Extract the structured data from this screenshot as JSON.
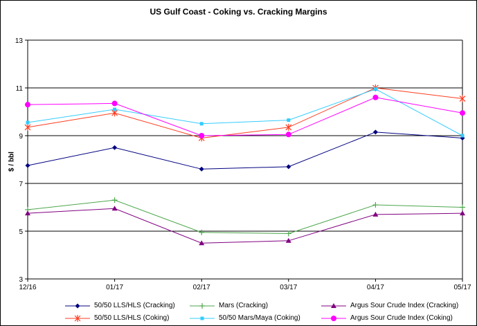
{
  "chart_data": {
    "type": "line",
    "title": "US Gulf Coast - Coking vs. Cracking Margins",
    "ylabel": "$ / bbl",
    "xlabel": "",
    "categories": [
      "12/16",
      "01/17",
      "02/17",
      "03/17",
      "04/17",
      "05/17"
    ],
    "ylim": [
      3,
      13
    ],
    "yticks": [
      3,
      5,
      7,
      9,
      11,
      13
    ],
    "gridlines": "horizontal at major ticks",
    "legend_position": "bottom",
    "series": [
      {
        "name": "50/50 LLS/HLS (Cracking)",
        "color": "#000080",
        "marker": "diamond",
        "values": [
          7.75,
          8.5,
          7.6,
          7.7,
          9.15,
          8.9
        ]
      },
      {
        "name": "Mars (Cracking)",
        "color": "#4CA64C",
        "marker": "plus",
        "values": [
          5.9,
          6.3,
          4.95,
          4.9,
          6.1,
          6.0
        ]
      },
      {
        "name": "Argus Sour Crude Index (Cracking)",
        "color": "#800080",
        "marker": "triangle",
        "values": [
          5.75,
          5.95,
          4.5,
          4.6,
          5.7,
          5.75
        ]
      },
      {
        "name": "50/50 LLS/HLS (Coking)",
        "color": "#FF3B1F",
        "marker": "asterisk",
        "values": [
          9.35,
          9.95,
          8.9,
          9.35,
          11.0,
          10.55
        ]
      },
      {
        "name": "50/50 Mars/Maya (Coking)",
        "color": "#33CCFF",
        "marker": "square",
        "values": [
          9.55,
          10.1,
          9.5,
          9.65,
          10.95,
          9.0
        ]
      },
      {
        "name": "Argus Sour Crude Index (Coking)",
        "color": "#FF00FF",
        "marker": "circle",
        "values": [
          10.3,
          10.35,
          9.0,
          9.05,
          10.6,
          9.95
        ]
      }
    ]
  }
}
